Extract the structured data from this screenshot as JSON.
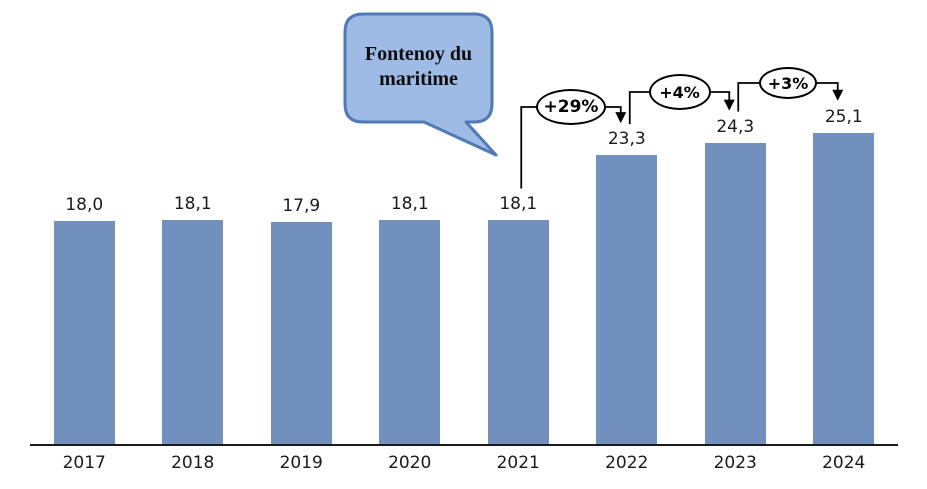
{
  "chart_data": {
    "type": "bar",
    "title": "",
    "xlabel": "",
    "ylabel": "",
    "categories": [
      "2017",
      "2018",
      "2019",
      "2020",
      "2021",
      "2022",
      "2023",
      "2024"
    ],
    "values": [
      18.0,
      18.1,
      17.9,
      18.1,
      18.1,
      23.3,
      24.3,
      25.1
    ],
    "value_labels": [
      "18,0",
      "18,1",
      "17,9",
      "18,1",
      "18,1",
      "23,3",
      "24,3",
      "25,1"
    ],
    "ylim": [
      0,
      26
    ],
    "grid": false,
    "legend": false,
    "bar_color": "#7290BD",
    "axis_color": "#1a1a1a",
    "annotation_color": "#000000",
    "annotations": [
      {
        "label": "+29%",
        "from": "2021",
        "to": "2022"
      },
      {
        "label": "+4%",
        "from": "2022",
        "to": "2023"
      },
      {
        "label": "+3%",
        "from": "2023",
        "to": "2024"
      }
    ],
    "callout": {
      "text": "Fontenoy du maritime",
      "points_to": "2021",
      "fill": "#9DBBE4",
      "border": "#4F7AB6",
      "text_color": "#0d0d0d"
    }
  }
}
